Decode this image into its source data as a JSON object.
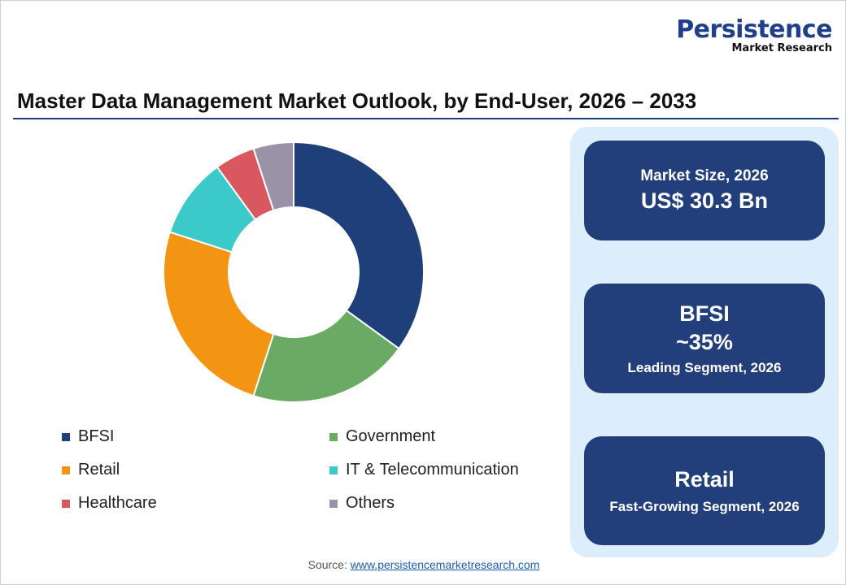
{
  "logo": {
    "line1": "Persistence",
    "line2": "Market Research"
  },
  "title": "Master Data Management Market Outlook, by End-User, 2026 – 2033",
  "chart_data": {
    "type": "pie",
    "donut": true,
    "categories": [
      "BFSI",
      "Government",
      "Retail",
      "IT & Telecommunication",
      "Healthcare",
      "Others"
    ],
    "values": [
      35,
      20,
      25,
      10,
      5,
      5
    ],
    "colors": [
      "#1f3f7a",
      "#6aaa64",
      "#f39513",
      "#3cc9c9",
      "#d9575f",
      "#9a93a8"
    ],
    "legend_placement": "bottom"
  },
  "cards": [
    {
      "label": "Market Size, 2026",
      "value": "US$ 30.3 Bn"
    },
    {
      "title": "BFSI",
      "value": "~35%",
      "label": "Leading Segment, 2026"
    },
    {
      "title": "Retail",
      "label": "Fast-Growing Segment, 2026"
    }
  ],
  "source": {
    "label": "Source:",
    "link": "www.persistencemarketresearch.com"
  }
}
